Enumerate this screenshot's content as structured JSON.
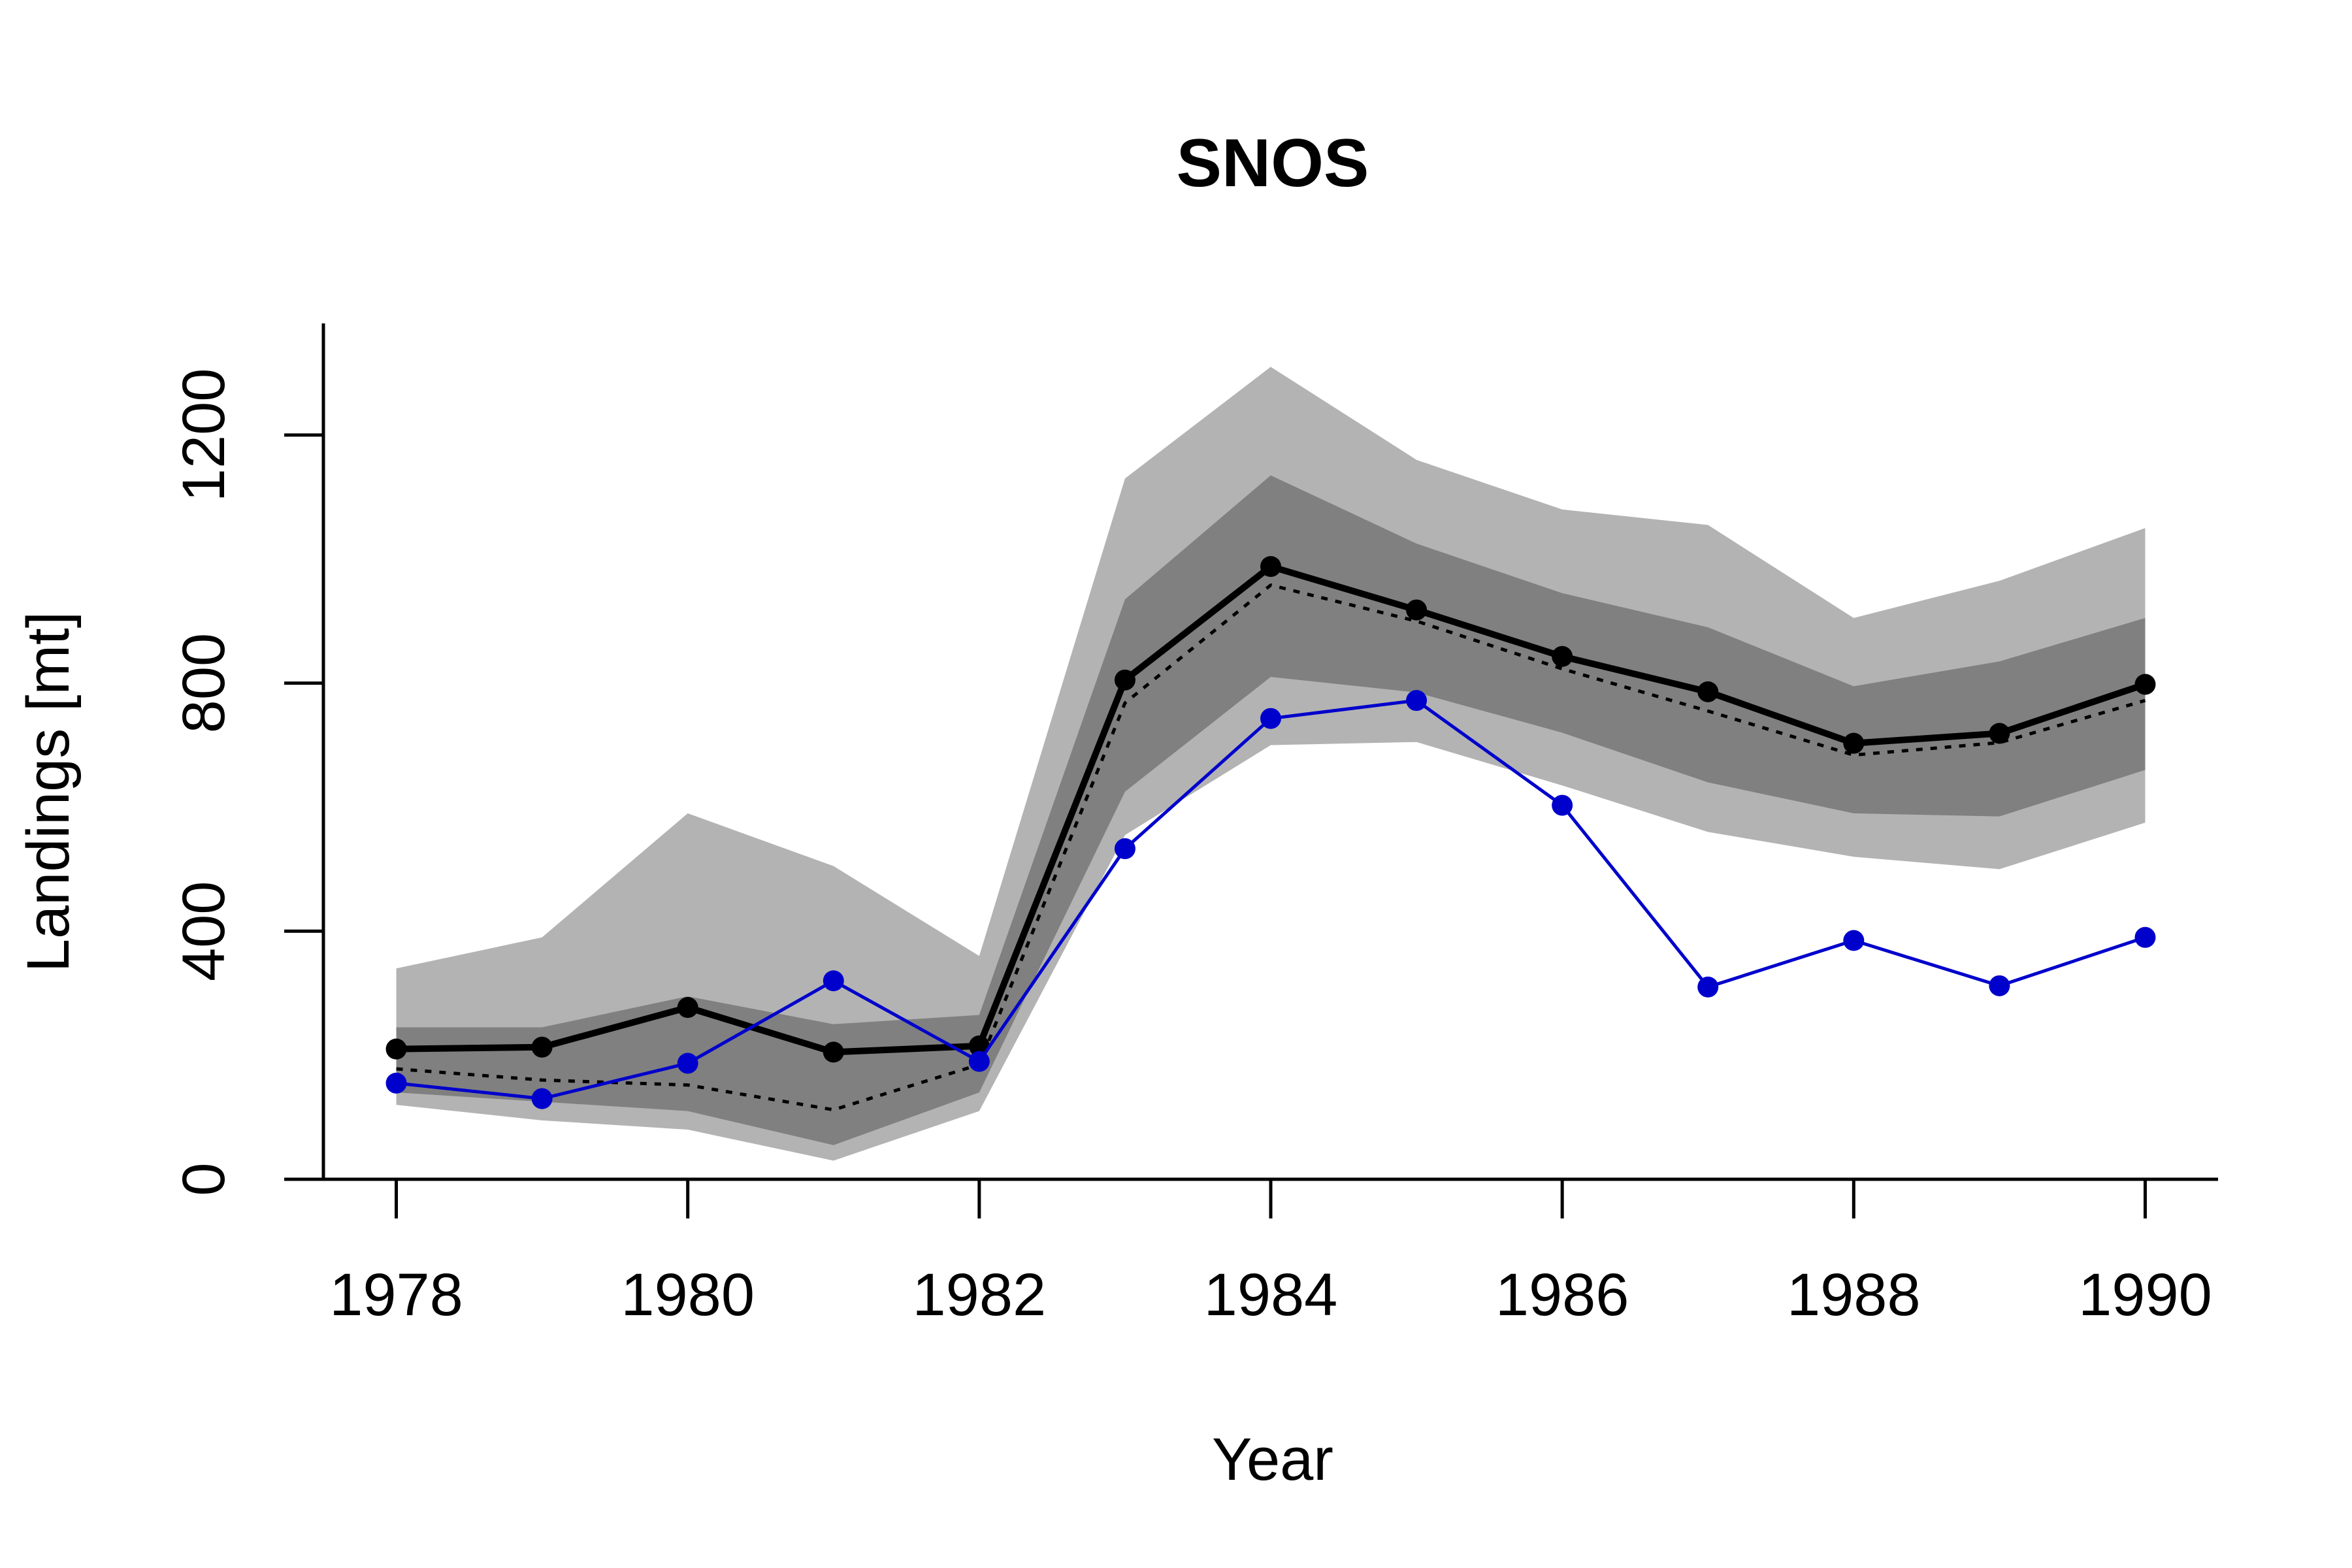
{
  "chart_data": {
    "type": "line",
    "title": "SNOS",
    "xlabel": "Year",
    "ylabel": "Landings [mt]",
    "x": [
      1978,
      1979,
      1980,
      1981,
      1982,
      1983,
      1984,
      1985,
      1986,
      1987,
      1988,
      1989,
      1990
    ],
    "xlim": [
      1977.5,
      1990.5
    ],
    "ylim": [
      0,
      1380
    ],
    "x_ticks": [
      1978,
      1980,
      1982,
      1984,
      1986,
      1988,
      1990
    ],
    "y_ticks": [
      0,
      400,
      800,
      1200
    ],
    "bands": [
      {
        "color": "#b3b3b3",
        "lower": [
          120,
          95,
          80,
          30,
          110,
          555,
          700,
          705,
          635,
          560,
          520,
          500,
          575
        ],
        "upper": [
          340,
          390,
          590,
          505,
          360,
          1130,
          1310,
          1160,
          1080,
          1055,
          905,
          965,
          1050
        ]
      },
      {
        "color": "#808080",
        "lower": [
          140,
          125,
          110,
          55,
          140,
          625,
          810,
          785,
          720,
          640,
          590,
          585,
          660
        ],
        "upper": [
          245,
          245,
          295,
          250,
          265,
          935,
          1135,
          1025,
          945,
          890,
          795,
          835,
          905
        ]
      }
    ],
    "series": [
      {
        "color": "#000000",
        "style": "solid-bold",
        "markers": true,
        "values": [
          210,
          213,
          277,
          205,
          215,
          805,
          988,
          918,
          843,
          786,
          703,
          719,
          798
        ]
      },
      {
        "color": "#000000",
        "style": "dotted",
        "markers": false,
        "values": [
          178,
          160,
          152,
          112,
          185,
          768,
          958,
          900,
          823,
          755,
          684,
          704,
          772
        ]
      },
      {
        "color": "#0000cc",
        "style": "solid-thin",
        "markers": true,
        "values": [
          155,
          130,
          187,
          320,
          190,
          533,
          743,
          772,
          603,
          310,
          385,
          312,
          390
        ]
      }
    ],
    "grid": false,
    "legend": "none"
  }
}
